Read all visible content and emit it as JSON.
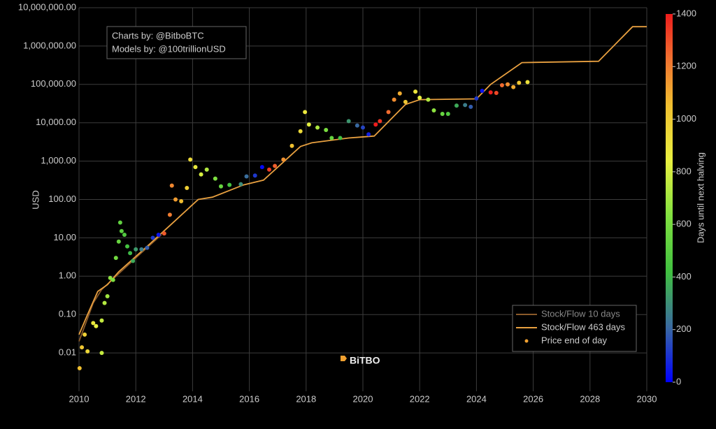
{
  "chart_data": {
    "type": "line",
    "y_label": "USD",
    "log_y": true,
    "grid": true,
    "legend_position": "bottom-right",
    "xlim": [
      2010,
      2030
    ],
    "xticks": [
      2010,
      2012,
      2014,
      2016,
      2018,
      2020,
      2022,
      2024,
      2026,
      2028,
      2030
    ],
    "ylim": [
      0.001,
      10000000
    ],
    "yticks": [
      {
        "value": 0.01,
        "label": "0.01"
      },
      {
        "value": 0.1,
        "label": "0.10"
      },
      {
        "value": 1,
        "label": "1.00"
      },
      {
        "value": 10,
        "label": "10.00"
      },
      {
        "value": 100,
        "label": "100.00"
      },
      {
        "value": 1000,
        "label": "1,000.00"
      },
      {
        "value": 10000,
        "label": "10,000.00"
      },
      {
        "value": 100000,
        "label": "100,000.00"
      },
      {
        "value": 1000000,
        "label": "1,000,000.00"
      },
      {
        "value": 10000000,
        "label": "10,000,000.00"
      }
    ],
    "annotations": [
      "Charts by: @BitboBTC",
      "Models by: @100trillionUSD"
    ],
    "logo": "BiTBO",
    "colorbar": {
      "title": "Days until next halving",
      "lim": [
        0,
        1400
      ],
      "ticks": [
        0,
        200,
        400,
        600,
        800,
        1000,
        1200,
        1400
      ],
      "colorscale": [
        [
          0,
          "#0000ff"
        ],
        [
          0.15,
          "#3a6aa0"
        ],
        [
          0.3,
          "#40c040"
        ],
        [
          0.45,
          "#80e040"
        ],
        [
          0.6,
          "#e8f040"
        ],
        [
          0.75,
          "#f0c030"
        ],
        [
          0.88,
          "#f07030"
        ],
        [
          1,
          "#ee1c1c"
        ]
      ]
    },
    "series": [
      {
        "name": "Stock/Flow 10 days",
        "type": "line",
        "color": "#8a5a2a",
        "x": [
          2010,
          2010.2,
          2010.5,
          2010.8,
          2011.3,
          2012.1,
          2012.9
        ],
        "values": [
          0.02,
          0.05,
          0.2,
          0.45,
          1.0,
          3.5,
          12
        ]
      },
      {
        "name": "Stock/Flow 463 days",
        "type": "line",
        "color": "#e8a040",
        "x": [
          2010,
          2010.3,
          2010.66,
          2011.0,
          2011.4,
          2012.5,
          2012.9,
          2014.2,
          2014.7,
          2015.8,
          2016.5,
          2017.8,
          2018.2,
          2019.5,
          2020.4,
          2021.5,
          2022.0,
          2024.0,
          2024.5,
          2025.6,
          2028.3,
          2029.5,
          2030
        ],
        "values": [
          0.03,
          0.1,
          0.4,
          0.6,
          1.3,
          7,
          13,
          100,
          115,
          240,
          320,
          2400,
          3000,
          4000,
          4500,
          30000,
          40000,
          42000,
          100000,
          370000,
          400000,
          3200000,
          3200000
        ]
      },
      {
        "name": "Price end of day",
        "type": "scatter",
        "color": "#f0a030",
        "x": [
          2010.02,
          2010.1,
          2010.2,
          2010.3,
          2010.5,
          2010.6,
          2010.8,
          2010.8,
          2010.9,
          2011.0,
          2011.1,
          2011.2,
          2011.3,
          2011.4,
          2011.45,
          2011.5,
          2011.6,
          2011.7,
          2011.8,
          2011.9,
          2012.0,
          2012.2,
          2012.4,
          2012.6,
          2012.8,
          2013.0,
          2013.2,
          2013.27,
          2013.4,
          2013.6,
          2013.8,
          2013.92,
          2014.1,
          2014.3,
          2014.5,
          2014.8,
          2015.0,
          2015.3,
          2015.7,
          2015.9,
          2016.2,
          2016.45,
          2016.7,
          2016.9,
          2017.2,
          2017.5,
          2017.8,
          2017.96,
          2018.1,
          2018.4,
          2018.7,
          2018.9,
          2019.2,
          2019.5,
          2019.8,
          2020.0,
          2020.2,
          2020.45,
          2020.6,
          2020.9,
          2021.1,
          2021.3,
          2021.5,
          2021.85,
          2022.0,
          2022.3,
          2022.5,
          2022.8,
          2023.0,
          2023.3,
          2023.6,
          2023.8,
          2024.0,
          2024.2,
          2024.5,
          2024.7,
          2024.9,
          2025.1,
          2025.3,
          2025.5,
          2025.8
        ],
        "values": [
          0.004,
          0.014,
          0.03,
          0.011,
          0.06,
          0.05,
          0.01,
          0.07,
          0.2,
          0.3,
          0.9,
          0.8,
          3,
          8,
          25,
          15,
          12,
          6,
          4,
          2.5,
          5,
          5,
          5.5,
          10,
          12,
          13,
          40,
          230,
          100,
          90,
          200,
          1100,
          700,
          450,
          600,
          350,
          220,
          240,
          250,
          400,
          420,
          700,
          600,
          750,
          1100,
          2500,
          6000,
          19000,
          9000,
          7500,
          6500,
          4000,
          4000,
          11000,
          8500,
          7500,
          5000,
          9000,
          11000,
          19000,
          40000,
          58000,
          35000,
          65000,
          45000,
          40000,
          21000,
          17000,
          17000,
          28000,
          29000,
          26000,
          43000,
          68000,
          62000,
          60000,
          95000,
          100000,
          85000,
          110000,
          115000
        ],
        "days": [
          1051,
          1022,
          986,
          949,
          876,
          840,
          767,
          767,
          730,
          694,
          657,
          621,
          584,
          548,
          529,
          511,
          475,
          438,
          402,
          365,
          329,
          256,
          183,
          110,
          37,
          1278,
          1205,
          1179,
          1132,
          1059,
          986,
          942,
          876,
          803,
          730,
          621,
          548,
          438,
          292,
          219,
          110,
          18,
          1340,
          1267,
          1157,
          1048,
          938,
          880,
          829,
          719,
          610,
          537,
          427,
          318,
          208,
          135,
          62,
          1400,
          1351,
          1241,
          1168,
          1095,
          1022,
          894,
          840,
          730,
          657,
          548,
          475,
          365,
          256,
          183,
          110,
          37,
          1387,
          1314,
          1241,
          1168,
          1095,
          1022,
          913
        ]
      }
    ]
  }
}
